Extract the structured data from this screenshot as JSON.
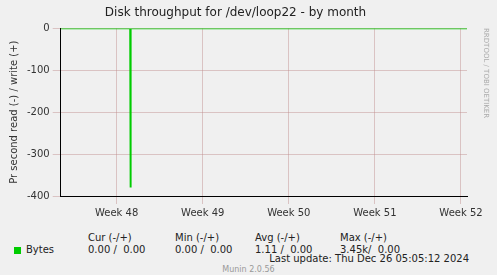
{
  "chart_data": {
    "type": "line",
    "title": "Disk throughput for /dev/loop22 - by month",
    "y_label": "Pr second read (-) / write (+)",
    "x": [
      47.35,
      48.155,
      48.16,
      48.165,
      52.07
    ],
    "series": [
      {
        "name": "Bytes",
        "color": "#00cc00",
        "values": [
          0,
          0,
          -378,
          0,
          0
        ]
      }
    ],
    "xlim": [
      47.35,
      52.07
    ],
    "xticks": [
      {
        "value": 48,
        "label": "Week 48"
      },
      {
        "value": 49,
        "label": "Week 49"
      },
      {
        "value": 50,
        "label": "Week 50"
      },
      {
        "value": 51,
        "label": "Week 51"
      },
      {
        "value": 52,
        "label": "Week 52"
      }
    ],
    "ylim": [
      -400,
      0
    ],
    "yticks": [
      -400,
      -300,
      -200,
      -100,
      0
    ],
    "grid": true,
    "legend_table": {
      "columns": [
        "Cur (-/+)",
        "Min (-/+)",
        "Avg (-/+)",
        "Max (-/+)"
      ],
      "values": [
        "0.00 /  0.00",
        "0.00 /  0.00",
        "1.11 /  0.00",
        "3.45k/  0.00"
      ]
    },
    "last_update": "Last update: Thu Dec 26 05:05:12 2024",
    "footer": "Munin 2.0.56",
    "watermark": "RRDTOOL / TOBI OETIKER"
  }
}
